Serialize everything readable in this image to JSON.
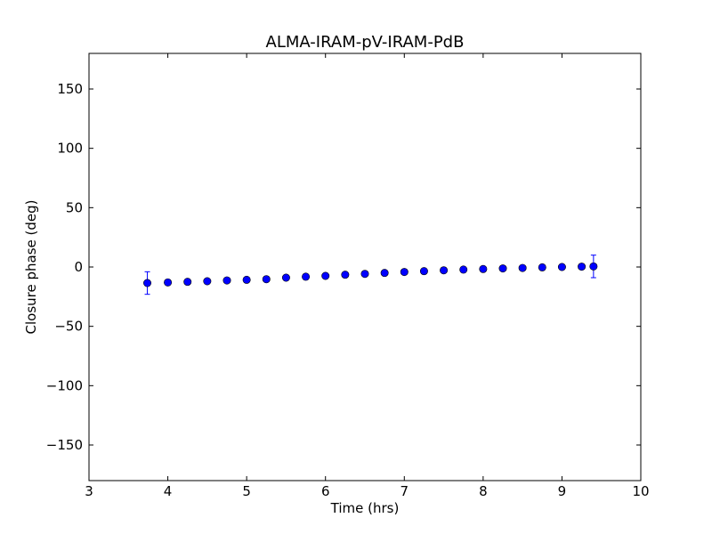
{
  "chart_data": {
    "type": "scatter",
    "title": "ALMA-IRAM-pV-IRAM-PdB",
    "xlabel": "Time (hrs)",
    "ylabel": "Closure phase (deg)",
    "xlim": [
      3,
      10
    ],
    "ylim": [
      -180,
      180
    ],
    "xticks": [
      3,
      4,
      5,
      6,
      7,
      8,
      9,
      10
    ],
    "xtick_labels": [
      "3",
      "4",
      "5",
      "6",
      "7",
      "8",
      "9",
      "10"
    ],
    "yticks": [
      -150,
      -100,
      -50,
      0,
      50,
      100,
      150
    ],
    "ytick_labels": [
      "−150",
      "−100",
      "−50",
      "0",
      "50",
      "100",
      "150"
    ],
    "grid": false,
    "legend": "none",
    "marker_color": "#0000ff",
    "errorbar_color": "#0000ff",
    "series": [
      {
        "x": [
          3.74,
          4.0,
          4.25,
          4.5,
          4.75,
          5.0,
          5.25,
          5.5,
          5.75,
          6.0,
          6.25,
          6.5,
          6.75,
          7.0,
          7.25,
          7.5,
          7.75,
          8.0,
          8.25,
          8.5,
          8.75,
          9.0,
          9.25,
          9.4
        ],
        "y": [
          -13.5,
          -13.0,
          -12.5,
          -12.0,
          -11.3,
          -10.8,
          -10.3,
          -9.0,
          -8.2,
          -7.5,
          -6.5,
          -5.8,
          -5.0,
          -4.2,
          -3.5,
          -2.8,
          -2.2,
          -1.7,
          -1.2,
          -0.8,
          -0.3,
          0.0,
          0.3,
          0.5
        ],
        "yerr": [
          9.5,
          1.2,
          1.0,
          1.0,
          0.9,
          0.9,
          0.9,
          0.9,
          0.9,
          0.9,
          0.9,
          0.9,
          0.9,
          0.9,
          0.9,
          0.9,
          0.9,
          0.9,
          0.9,
          0.9,
          0.9,
          0.9,
          1.0,
          9.5
        ]
      }
    ]
  }
}
